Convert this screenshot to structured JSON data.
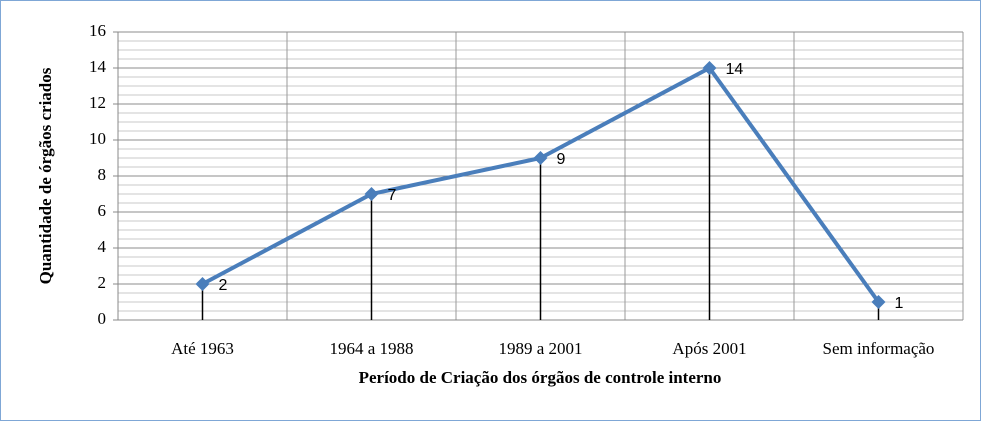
{
  "chart_data": {
    "type": "line",
    "x_label": "Período de Criação dos órgãos de controle interno",
    "y_label": "Quantidade de órgãos criados",
    "categories": [
      "Até 1963",
      "1964 a 1988",
      "1989 a 2001",
      "Após 2001",
      "Sem informação"
    ],
    "series": [
      {
        "name": "Quantidade",
        "color": "#4a7ebb",
        "values": [
          2,
          7,
          9,
          14,
          1
        ]
      }
    ],
    "ylim": [
      0,
      16
    ],
    "yticks": [
      0,
      2,
      4,
      6,
      8,
      10,
      12,
      14,
      16
    ],
    "grid": true,
    "minor_grid": true,
    "drop_lines": true,
    "legend": false
  }
}
